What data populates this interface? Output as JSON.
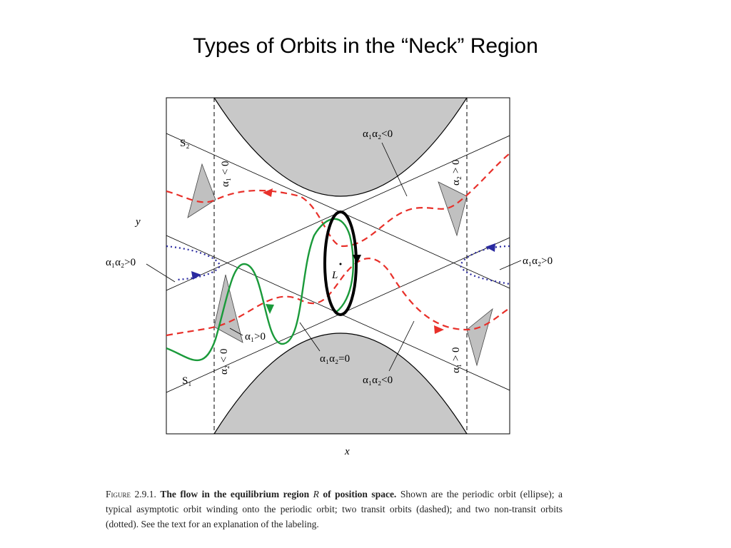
{
  "title": "Types of Orbits in the “Neck” Region",
  "diagram": {
    "labels": {
      "s2": "S₂",
      "s1": "S₁",
      "y_axis": "y",
      "x_axis": "x",
      "l_point": "L",
      "top_a1a2_neg": "α₁α₂<0",
      "left_a1a2_pos": "α₁α₂>0",
      "right_a1a2_pos": "α₁α₂>0",
      "a1_pos": "α₁>0",
      "a1a2_zero": "α₁α₂=0",
      "bottom_a1a2_neg": "α₁α₂<0",
      "left_top_a1_neg": "α₁ < 0",
      "right_top_a2_pos": "α₂ > 0",
      "left_bottom_a2_neg": "α₂ < 0",
      "right_bottom_a1_pos": "α₁ > 0"
    }
  },
  "caption": {
    "figure": "Figure 2.9.1.",
    "bold_1": "The flow in the equilibrium region",
    "region": "R",
    "bold_2": "of position space.",
    "text": "Shown are the periodic orbit (ellipse); a typical asymptotic orbit winding onto the periodic orbit; two transit orbits (dashed); and two non-transit orbits (dotted). See the text for an explanation of the labeling."
  }
}
